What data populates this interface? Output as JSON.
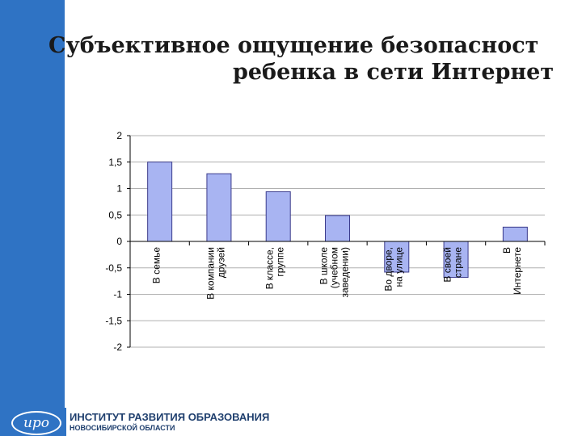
{
  "title_line1": "Субъективное ощущение безопасност",
  "title_line2": "ребенка в сети Интернет",
  "logo_text": "ирo",
  "org_name": "ИНСТИТУТ РАЗВИТИЯ ОБРАЗОВАНИЯ",
  "org_region": "НОВОСИБИРСКОЙ ОБЛАСТИ",
  "colors": {
    "sidebar": "#2f73c4",
    "bar_fill": "#a8b4f2",
    "bar_stroke": "#3c3c8c"
  },
  "chart_data": {
    "type": "bar",
    "title": "",
    "xlabel": "",
    "ylabel": "",
    "ylim": [
      -2,
      2
    ],
    "yticks": [
      2,
      1.5,
      1,
      0.5,
      0,
      -0.5,
      -1,
      -1.5,
      -2
    ],
    "ytick_labels": [
      "2",
      "1,5",
      "1",
      "0,5",
      "0",
      "-0,5",
      "-1",
      "-1,5",
      "-2"
    ],
    "grid": true,
    "categories": [
      [
        "В семье"
      ],
      [
        "В компании",
        "друзей"
      ],
      [
        "В классе,",
        "группе"
      ],
      [
        "В школе",
        "(учебном",
        "заведении)"
      ],
      [
        "Во дворе,",
        "на улице"
      ],
      [
        "В своей",
        "стране"
      ],
      [
        "В",
        "Интернете"
      ]
    ],
    "values": [
      1.5,
      1.28,
      0.94,
      0.49,
      -0.58,
      -0.68,
      0.27
    ]
  }
}
